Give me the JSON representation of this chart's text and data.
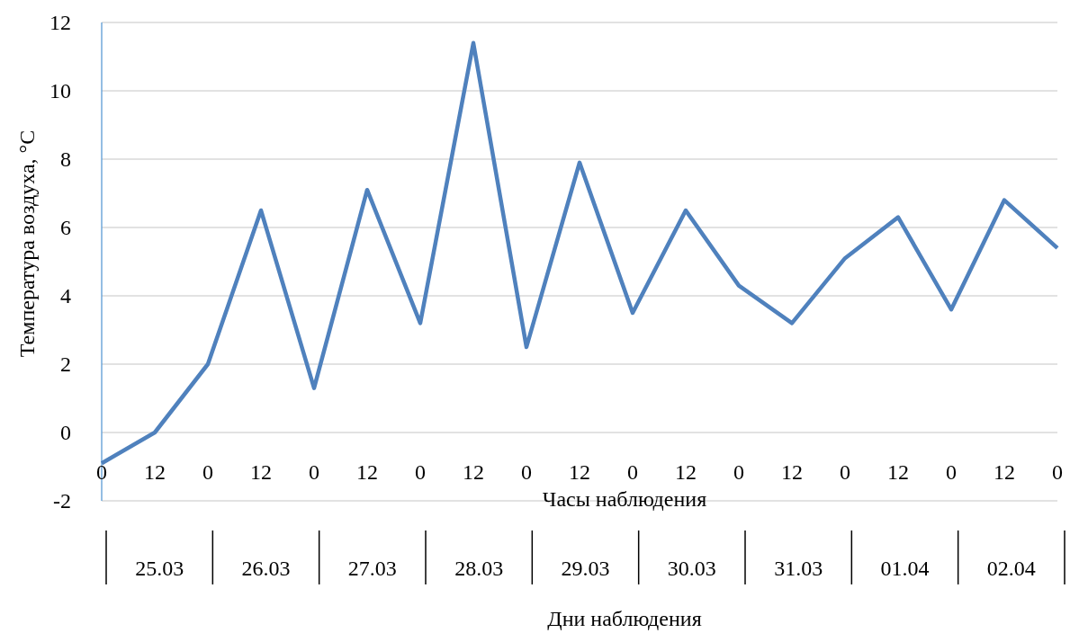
{
  "chart_data": {
    "type": "line",
    "xlabel": "Часы наблюдения",
    "ylabel": "Температура воздуха, °C",
    "categories": [
      "0",
      "12",
      "0",
      "12",
      "0",
      "12",
      "0",
      "12",
      "0",
      "12",
      "0",
      "12",
      "0",
      "12",
      "0",
      "12",
      "0",
      "12",
      "0"
    ],
    "series": [
      {
        "color": "#4f81bd",
        "values": [
          -0.9,
          0,
          2,
          6.5,
          1.3,
          7.1,
          3.2,
          11.4,
          2.5,
          7.9,
          3.5,
          6.5,
          4.3,
          3.2,
          5.1,
          6.3,
          3.6,
          6.8,
          5.4
        ]
      }
    ],
    "ylim": [
      -2,
      12
    ],
    "yticks": [
      -2,
      0,
      2,
      4,
      6,
      8,
      10,
      12
    ],
    "grid": "y",
    "marker": "none",
    "line_style": "solid",
    "annotations": [
      "25.03",
      "26.03",
      "27.03",
      "28.03",
      "29.03",
      "30.03",
      "31.03",
      "01.04",
      "02.04",
      "Дни наблюдения"
    ]
  }
}
